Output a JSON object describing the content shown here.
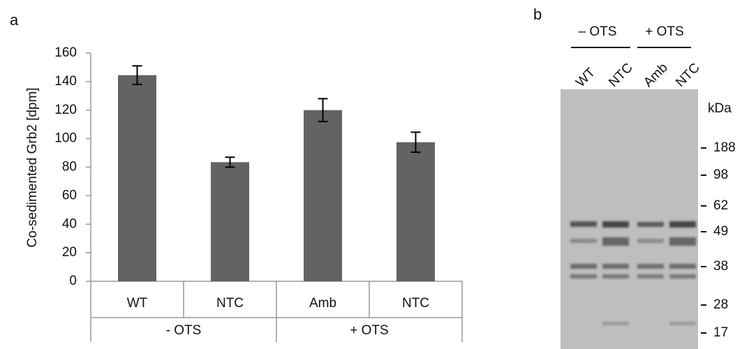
{
  "panel_labels": [
    "a",
    "b"
  ],
  "chart_data": {
    "type": "bar",
    "ylabel": "Co-sedimented Grb2 [dpm]",
    "categories": [
      "WT",
      "NTC",
      "Amb",
      "NTC"
    ],
    "groups": [
      "- OTS",
      "+ OTS"
    ],
    "values": [
      144.5,
      83.5,
      120,
      97.5
    ],
    "errors": [
      6.5,
      3.5,
      8,
      7
    ],
    "color": "#636363",
    "ylim": [
      0,
      160
    ],
    "yticks": [
      0,
      20,
      40,
      60,
      80,
      100,
      120,
      140,
      160
    ],
    "grid": false
  },
  "gel": {
    "groups": [
      "– OTS",
      "+ OTS"
    ],
    "lanes": [
      "WT",
      "NTC",
      "Amb",
      "NTC"
    ],
    "unit": "kDa",
    "markers": [
      188,
      98,
      62,
      49,
      38,
      28,
      17
    ]
  }
}
